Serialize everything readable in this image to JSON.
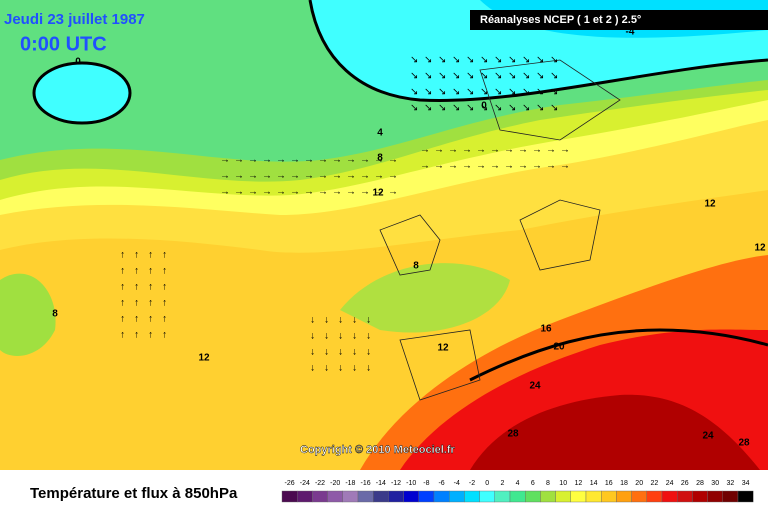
{
  "header": {
    "date": "Jeudi 23 juillet 1987",
    "time": "0:00 UTC",
    "source": "Réanalyses NCEP ( 1 et 2 ) 2.5°"
  },
  "map": {
    "copyright": "Copyright © 2010 Meteociel.fr",
    "contour_labels": [
      "0",
      "-4",
      "0",
      "4",
      "8",
      "12",
      "12",
      "8",
      "8",
      "12",
      "12",
      "16",
      "20",
      "24",
      "28",
      "24",
      "28",
      "12"
    ]
  },
  "legend": {
    "title": "Température et flux à 850hPa",
    "values": [
      "-26",
      "-24",
      "-22",
      "-20",
      "-18",
      "-16",
      "-14",
      "-12",
      "-10",
      "-8",
      "-6",
      "-4",
      "-2",
      "0",
      "2",
      "4",
      "6",
      "8",
      "10",
      "12",
      "14",
      "16",
      "18",
      "20",
      "22",
      "24",
      "26",
      "28",
      "30",
      "32",
      "34"
    ],
    "colors": [
      "#4b0a50",
      "#5e1a6e",
      "#7a3a8f",
      "#8e5aa8",
      "#a07ab8",
      "#6a6aa8",
      "#3a3a8a",
      "#2020a0",
      "#0000d0",
      "#0040ff",
      "#0080ff",
      "#00b0ff",
      "#00e0ff",
      "#40ffff",
      "#50f0c0",
      "#40e890",
      "#60e060",
      "#a0e040",
      "#d8f030",
      "#ffff40",
      "#ffe830",
      "#ffc820",
      "#ffa010",
      "#ff7010",
      "#ff4010",
      "#f01010",
      "#d01010",
      "#b00000",
      "#900000",
      "#700000",
      "#000000"
    ]
  }
}
